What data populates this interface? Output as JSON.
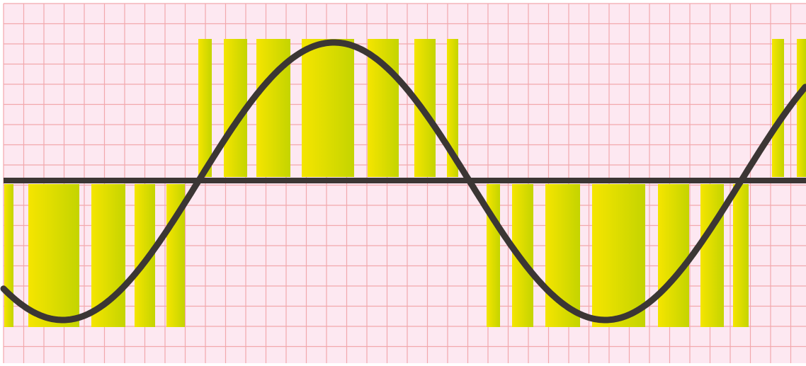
{
  "diagram": {
    "kind": "sine-pwm-illustration",
    "colors": {
      "background": "#fde8f1",
      "grid": "#f2a8ad",
      "pulse_start": "#f5e500",
      "pulse_end": "#c4d400",
      "curve": "#3b3634",
      "axis": "#3b3634"
    },
    "sine": {
      "period_fraction": 0.729,
      "phase_note_hidden": true
    },
    "pulse_trains": [
      {
        "name": "positive-half-cycle-left",
        "polarity": "positive",
        "widths_relative": [
          1,
          2,
          3,
          4.5,
          3,
          2,
          1
        ]
      },
      {
        "name": "negative-half-cycle-left",
        "polarity": "negative",
        "widths_relative": [
          1,
          4.5,
          3,
          2,
          1.5
        ]
      },
      {
        "name": "negative-half-cycle-middle",
        "polarity": "negative",
        "widths_relative": [
          1,
          2,
          3,
          4.5,
          3,
          2,
          1.5
        ]
      },
      {
        "name": "positive-half-cycle-right",
        "polarity": "positive",
        "widths_relative": [
          1,
          1
        ]
      }
    ]
  }
}
